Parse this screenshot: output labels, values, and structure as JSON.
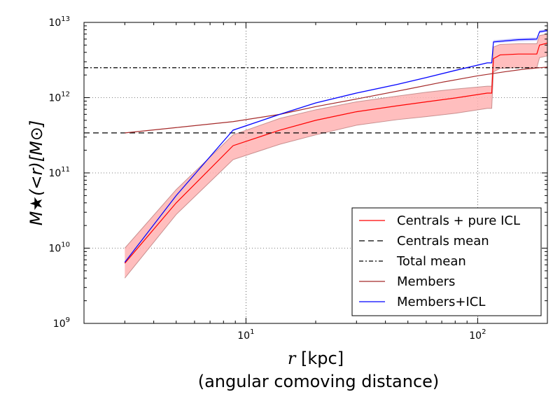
{
  "chart_data": {
    "type": "line",
    "xscale": "log",
    "yscale": "log",
    "xlim": [
      2,
      200
    ],
    "ylim": [
      1000000000,
      10000000000000
    ],
    "xticks": [
      {
        "value": 10,
        "base": "10",
        "exp": "1"
      },
      {
        "value": 100,
        "base": "10",
        "exp": "2"
      }
    ],
    "yticks": [
      {
        "value": 1000000000,
        "base": "10",
        "exp": "9"
      },
      {
        "value": 10000000000,
        "base": "10",
        "exp": "10"
      },
      {
        "value": 100000000000,
        "base": "10",
        "exp": "11"
      },
      {
        "value": 1000000000000,
        "base": "10",
        "exp": "12"
      },
      {
        "value": 10000000000000,
        "base": "10",
        "exp": "13"
      }
    ],
    "grid": true,
    "xlabel": {
      "var": "r",
      "text": " [kpc]",
      "subtitle": "(angular comoving distance)"
    },
    "ylabel": "M★(<r)[M⊙]",
    "legend_position": "lower-right",
    "series": [
      {
        "name": "Centrals + pure ICL",
        "color": "#ff0000",
        "style": "solid",
        "x": [
          3,
          5,
          8.8,
          14,
          20,
          30,
          45,
          60,
          80,
          110,
          115,
          117,
          125,
          150,
          180,
          185,
          200
        ],
        "y": [
          6300000000,
          40000000000,
          230000000000,
          370000000000,
          500000000000,
          650000000000,
          780000000000,
          880000000000,
          990000000000,
          1150000000000,
          1150000000000,
          3300000000000,
          3700000000000,
          3800000000000,
          3800000000000,
          5000000000000,
          5300000000000
        ],
        "band_upper": [
          10000000000,
          60000000000,
          320000000000,
          530000000000,
          690000000000,
          880000000000,
          1050000000000,
          1180000000000,
          1300000000000,
          1420000000000,
          1420000000000,
          4700000000000,
          5100000000000,
          5200000000000,
          5200000000000,
          6700000000000,
          7000000000000
        ],
        "band_lower": [
          4000000000,
          28000000000,
          150000000000,
          240000000000,
          320000000000,
          430000000000,
          510000000000,
          560000000000,
          620000000000,
          720000000000,
          720000000000,
          2200000000000,
          2450000000000,
          2500000000000,
          2500000000000,
          3400000000000,
          3600000000000
        ]
      },
      {
        "name": "Centrals mean",
        "color": "#000000",
        "style": "dashed",
        "x": [
          2,
          200
        ],
        "y": [
          340000000000,
          340000000000
        ]
      },
      {
        "name": "Total mean",
        "color": "#000000",
        "style": "dashdot",
        "x": [
          2,
          200
        ],
        "y": [
          2500000000000,
          2500000000000
        ]
      },
      {
        "name": "Members",
        "color": "#a52a2a",
        "style": "solid",
        "x": [
          3,
          5,
          8.8,
          14,
          20,
          30,
          50,
          70,
          100,
          130,
          160,
          200
        ],
        "y": [
          340000000000,
          400000000000,
          480000000000,
          600000000000,
          760000000000,
          960000000000,
          1300000000000,
          1600000000000,
          1950000000000,
          2200000000000,
          2400000000000,
          2550000000000
        ]
      },
      {
        "name": "Members+ICL",
        "color": "#0000ff",
        "style": "solid",
        "x": [
          3,
          5,
          8.8,
          14,
          20,
          30,
          45,
          60,
          80,
          110,
          115,
          117,
          150,
          180,
          185,
          200
        ],
        "y": [
          6500000000,
          50000000000,
          370000000000,
          600000000000,
          850000000000,
          1150000000000,
          1500000000000,
          1850000000000,
          2300000000000,
          2900000000000,
          2900000000000,
          5500000000000,
          5900000000000,
          6000000000000,
          7500000000000,
          7800000000000
        ],
        "band_upper": [
          6600000000,
          51000000000,
          378000000000,
          612000000000,
          867000000000,
          1173000000000,
          1530000000000,
          1887000000000,
          2346000000000,
          2958000000000,
          2958000000000,
          5800000000000,
          6200000000000,
          6300000000000,
          7900000000000,
          8100000000000
        ],
        "band_lower": [
          6400000000,
          49000000000,
          362000000000,
          588000000000,
          833000000000,
          1127000000000,
          1470000000000,
          1813000000000,
          2254000000000,
          2842000000000,
          2842000000000,
          5300000000000,
          5600000000000,
          5700000000000,
          7200000000000,
          7500000000000
        ]
      }
    ]
  }
}
